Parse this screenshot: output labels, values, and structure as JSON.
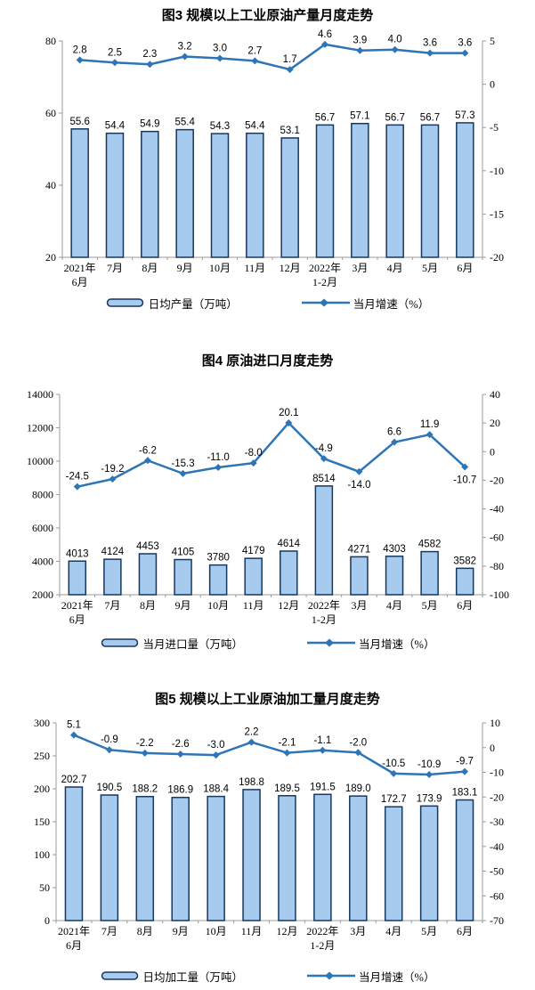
{
  "colors": {
    "bar_fill": "#A6CBEE",
    "bar_border": "#17375E",
    "line": "#2E75B6",
    "axis_line": "#9B9B9B",
    "text": "#000000"
  },
  "chart_data": [
    {
      "type": "bar+line",
      "title": "图3 规模以上工业原油产量月度走势",
      "categories": [
        "2021年\n6月",
        "7月",
        "8月",
        "9月",
        "10月",
        "11月",
        "12月",
        "2022年\n1-2月",
        "3月",
        "4月",
        "5月",
        "6月"
      ],
      "series": [
        {
          "name": "日均产量（万吨）",
          "type": "bar",
          "axis": "left",
          "values": [
            55.6,
            54.4,
            54.9,
            55.4,
            54.3,
            54.4,
            53.1,
            56.7,
            57.1,
            56.7,
            56.7,
            57.3
          ],
          "labels": [
            "55.6",
            "54.4",
            "54.9",
            "55.4",
            "54.3",
            "54.4",
            "53.1",
            "56.7",
            "57.1",
            "56.7",
            "56.7",
            "57.3"
          ]
        },
        {
          "name": "当月增速（%）",
          "type": "line",
          "axis": "right",
          "values": [
            2.8,
            2.5,
            2.3,
            3.2,
            3.0,
            2.7,
            1.7,
            4.6,
            3.9,
            4.0,
            3.6,
            3.6
          ],
          "labels": [
            "2.8",
            "2.5",
            "2.3",
            "3.2",
            "3.0",
            "2.7",
            "1.7",
            "4.6",
            "3.9",
            "4.0",
            "3.6",
            "3.6"
          ]
        }
      ],
      "left_axis": {
        "min": 20,
        "max": 80,
        "step": 20,
        "ticks": [
          80,
          60,
          40,
          20
        ]
      },
      "right_axis": {
        "min": -20,
        "max": 5,
        "step": 5,
        "ticks": [
          5,
          0,
          -5,
          -10,
          -15,
          -20
        ]
      },
      "grid": false,
      "legend_position": "bottom"
    },
    {
      "type": "bar+line",
      "title": "图4 原油进口月度走势",
      "categories": [
        "2021年\n6月",
        "7月",
        "8月",
        "9月",
        "10月",
        "11月",
        "12月",
        "2022年\n1-2月",
        "3月",
        "4月",
        "5月",
        "6月"
      ],
      "series": [
        {
          "name": "当月进口量（万吨）",
          "type": "bar",
          "axis": "left",
          "values": [
            4013,
            4124,
            4453,
            4105,
            3780,
            4179,
            4614,
            8514,
            4271,
            4303,
            4582,
            3582
          ],
          "labels": [
            "4013",
            "4124",
            "4453",
            "4105",
            "3780",
            "4179",
            "4614",
            "8514",
            "4271",
            "4303",
            "4582",
            "3582"
          ]
        },
        {
          "name": "当月增速（%）",
          "type": "line",
          "axis": "right",
          "values": [
            -24.5,
            -19.2,
            -6.2,
            -15.3,
            -11.0,
            -8.0,
            20.1,
            -4.9,
            -14.0,
            6.6,
            11.9,
            -10.7
          ],
          "labels": [
            "-24.5",
            "-19.2",
            "-6.2",
            "-15.3",
            "-11.0",
            "-8.0",
            "20.1",
            "-4.9",
            "-14.0",
            "6.6",
            "11.9",
            "-10.7"
          ]
        }
      ],
      "left_axis": {
        "min": 2000,
        "max": 14000,
        "step": 2000,
        "ticks": [
          14000,
          12000,
          10000,
          8000,
          6000,
          4000,
          2000
        ]
      },
      "right_axis": {
        "min": -100,
        "max": 40,
        "step": 20,
        "ticks": [
          40,
          20,
          0,
          -20,
          -40,
          -60,
          -80,
          -100
        ]
      },
      "grid": false,
      "legend_position": "bottom"
    },
    {
      "type": "bar+line",
      "title": "图5 规模以上工业原油加工量月度走势",
      "categories": [
        "2021年\n6月",
        "7月",
        "8月",
        "9月",
        "10月",
        "11月",
        "12月",
        "2022年\n1-2月",
        "3月",
        "4月",
        "5月",
        "6月"
      ],
      "series": [
        {
          "name": "日均加工量（万吨）",
          "type": "bar",
          "axis": "left",
          "values": [
            202.7,
            190.5,
            188.2,
            186.9,
            188.4,
            198.8,
            189.5,
            191.5,
            189.0,
            172.7,
            173.9,
            183.1
          ],
          "labels": [
            "202.7",
            "190.5",
            "188.2",
            "186.9",
            "188.4",
            "198.8",
            "189.5",
            "191.5",
            "189.0",
            "172.7",
            "173.9",
            "183.1"
          ]
        },
        {
          "name": "当月增速（%）",
          "type": "line",
          "axis": "right",
          "values": [
            5.1,
            -0.9,
            -2.2,
            -2.6,
            -3.0,
            2.2,
            -2.1,
            -1.1,
            -2.0,
            -10.5,
            -10.9,
            -9.7
          ],
          "labels": [
            "5.1",
            "-0.9",
            "-2.2",
            "-2.6",
            "-3.0",
            "2.2",
            "-2.1",
            "-1.1",
            "-2.0",
            "-10.5",
            "-10.9",
            "-9.7"
          ]
        }
      ],
      "left_axis": {
        "min": 0,
        "max": 300,
        "step": 50,
        "ticks": [
          300,
          250,
          200,
          150,
          100,
          50,
          0
        ]
      },
      "right_axis": {
        "min": -70,
        "max": 10,
        "step": 10,
        "ticks": [
          10,
          0,
          -10,
          -20,
          -30,
          -40,
          -50,
          -60,
          -70
        ]
      },
      "grid": false,
      "legend_position": "bottom"
    }
  ]
}
